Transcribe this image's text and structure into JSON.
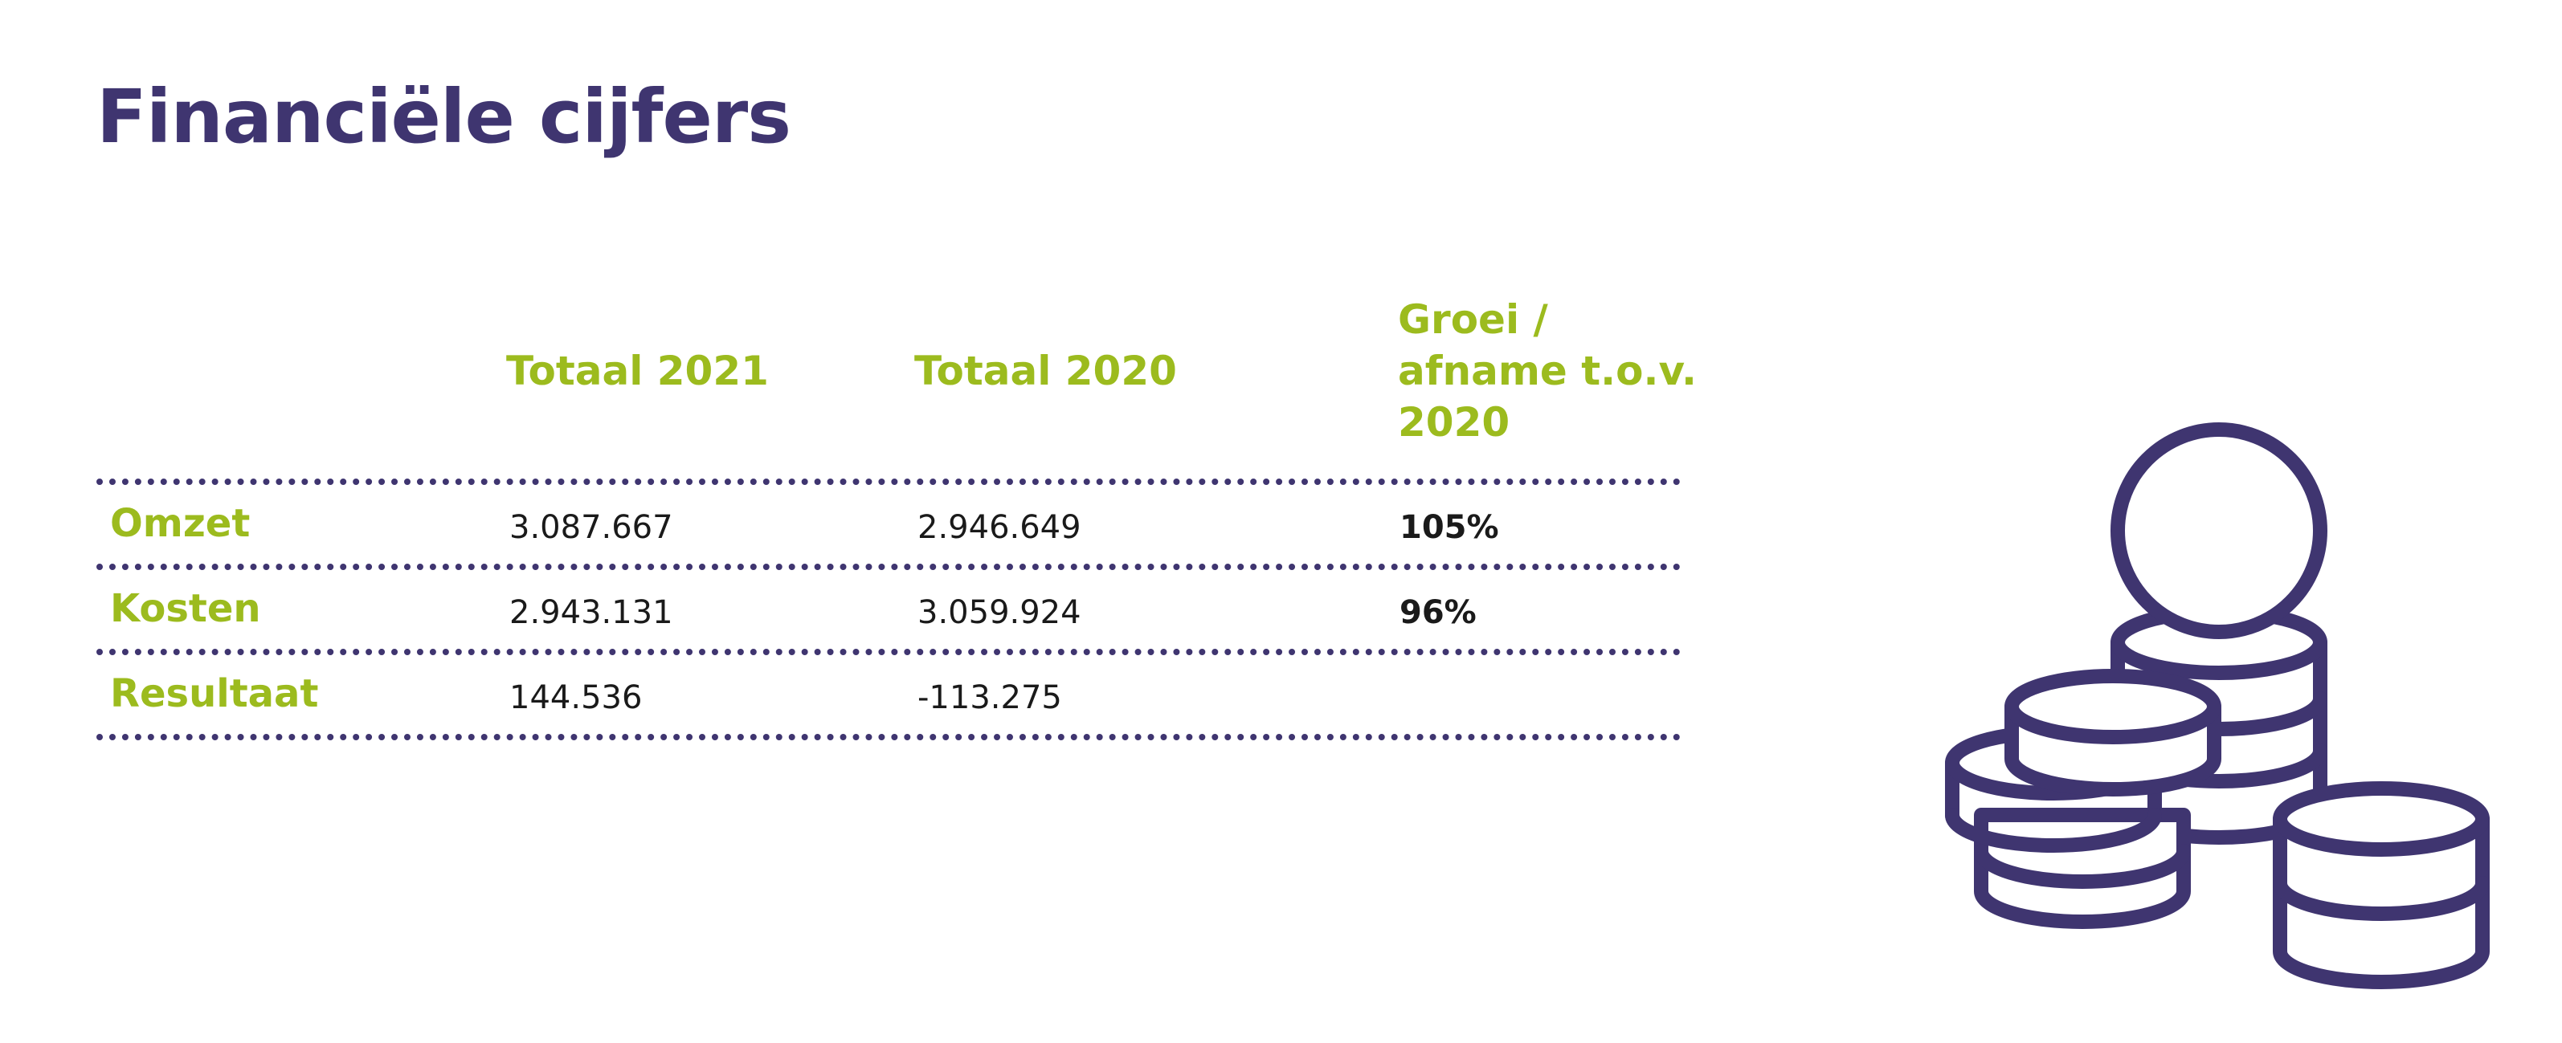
{
  "title": "Financiële cijfers",
  "columns": {
    "col1": "Totaal 2021",
    "col2": "Totaal 2020",
    "col3_line1": "Groei /",
    "col3_line2": "afname t.o.v.",
    "col3_line3": "2020"
  },
  "rows": [
    {
      "label": "Omzet",
      "total_2021": "3.087.667",
      "total_2020": "2.946.649",
      "growth": "105%"
    },
    {
      "label": "Kosten",
      "total_2021": "2.943.131",
      "total_2020": "3.059.924",
      "growth": "96%"
    },
    {
      "label": "Resultaat",
      "total_2021": "144.536",
      "total_2020": "-113.275",
      "growth": ""
    }
  ],
  "colors": {
    "title": "#3f3570",
    "accent": "#9cbb1e",
    "rule": "#3f3570",
    "icon": "#3f3570"
  },
  "icon": "coins-stack-icon"
}
